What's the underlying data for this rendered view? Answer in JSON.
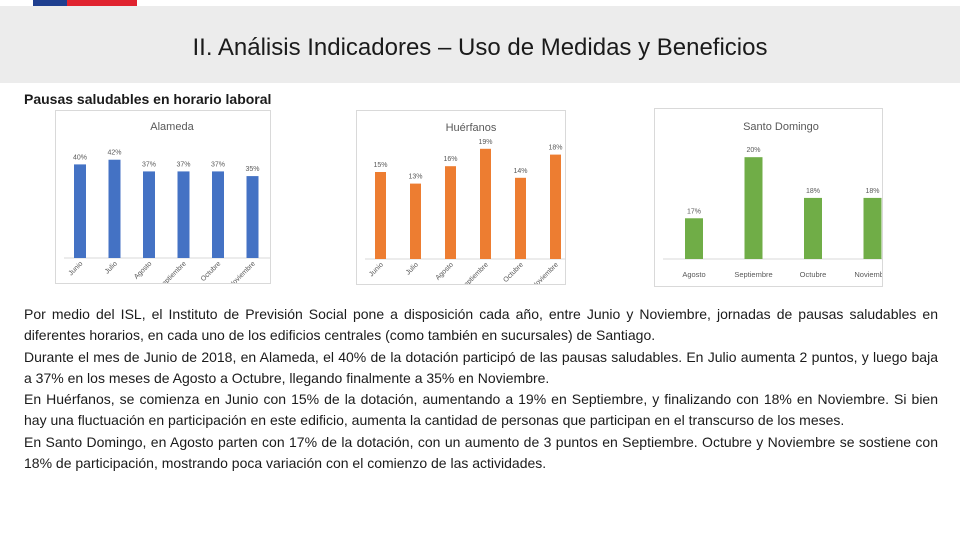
{
  "colors": {
    "flag_blue": "#1f3f8f",
    "flag_red": "#e0232f",
    "header_bg": "#ececec",
    "alameda": "#4472c4",
    "huerfanos": "#ed7d31",
    "santo_domingo": "#70ad47"
  },
  "header": {
    "title": "II. Análisis Indicadores – Uso de Medidas y Beneficios"
  },
  "section": {
    "subtitle": "Pausas saludables en horario laboral"
  },
  "chart_data": [
    {
      "type": "bar",
      "title": "Alameda",
      "categories": [
        "Junio",
        "Julio",
        "Agosto",
        "Septiembre",
        "Octubre",
        "Noviembre"
      ],
      "values": [
        40,
        42,
        37,
        37,
        37,
        35
      ],
      "labels": [
        "40%",
        "42%",
        "37%",
        "37%",
        "37%",
        "35%"
      ],
      "ylim": [
        0,
        50
      ]
    },
    {
      "type": "bar",
      "title": "Huérfanos",
      "categories": [
        "Junio",
        "Julio",
        "Agosto",
        "Septiembre",
        "Octubre",
        "Noviembre"
      ],
      "values": [
        15,
        13,
        16,
        19,
        14,
        18
      ],
      "labels": [
        "15%",
        "13%",
        "16%",
        "19%",
        "14%",
        "18%"
      ],
      "ylim": [
        0,
        20
      ]
    },
    {
      "type": "bar",
      "title": "Santo Domingo",
      "categories": [
        "Agosto",
        "Septiembre",
        "Octubre",
        "Noviembre"
      ],
      "values": [
        17,
        20,
        18,
        18
      ],
      "labels": [
        "17%",
        "20%",
        "18%",
        "18%"
      ],
      "ylim": [
        15,
        20.5
      ]
    }
  ],
  "paragraphs": [
    "Por medio del ISL, el Instituto de Previsión Social pone a disposición cada año, entre Junio y Noviembre, jornadas de pausas saludables en diferentes horarios, en cada uno de los edificios centrales (como también en sucursales) de Santiago.",
    "Durante el mes de Junio de 2018, en Alameda, el 40% de la dotación participó de las pausas saludables. En Julio aumenta 2 puntos, y luego baja a 37% en los meses de Agosto a Octubre, llegando finalmente a 35% en Noviembre.",
    "En Huérfanos, se comienza en Junio con 15% de la dotación, aumentando a 19% en Septiembre, y finalizando con 18% en Noviembre. Si bien hay una fluctuación en participación en este edificio, aumenta la cantidad de personas que participan en el transcurso de los meses.",
    "En Santo Domingo, en Agosto parten con 17% de la dotación, con un aumento de 3 puntos en Septiembre. Octubre y Noviembre se sostiene con 18% de participación, mostrando poca variación con el comienzo de las actividades."
  ]
}
